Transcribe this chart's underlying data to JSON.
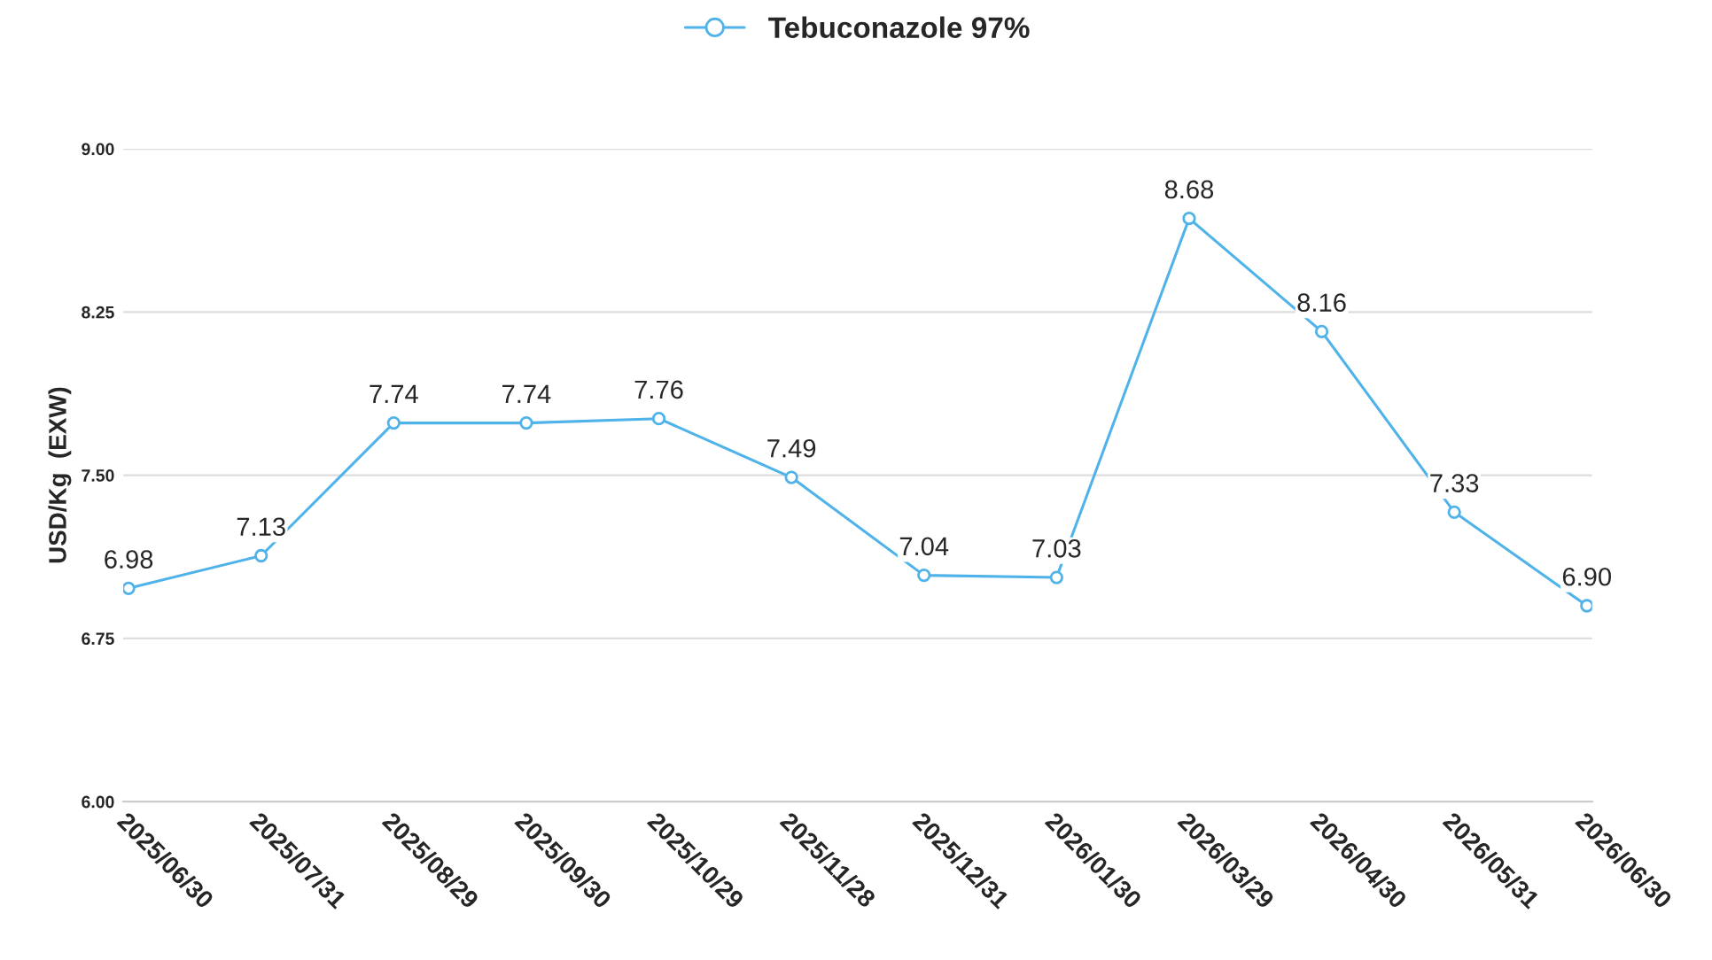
{
  "chart_data": {
    "type": "line",
    "ylabel": "USD/Kg  (EXW)",
    "categories": [
      "2025/06/30",
      "2025/07/31",
      "2025/08/29",
      "2025/09/30",
      "2025/10/29",
      "2025/11/28",
      "2025/12/31",
      "2026/01/30",
      "2026/03/29",
      "2026/04/30",
      "2026/05/31",
      "2026/06/30"
    ],
    "series": [
      {
        "name": "Tebuconazole 97%",
        "color": "#4fb3ea",
        "values": [
          6.98,
          7.13,
          7.74,
          7.74,
          7.76,
          7.49,
          7.04,
          7.03,
          8.68,
          8.16,
          7.33,
          6.9
        ],
        "value_labels": [
          "6.98",
          "7.13",
          "7.74",
          "7.74",
          "7.76",
          "7.49",
          "7.04",
          "7.03",
          "8.68",
          "8.16",
          "7.33",
          "6.90"
        ]
      }
    ],
    "ylim": [
      6,
      9
    ],
    "yticks": [
      {
        "value": 6,
        "label": "6.00"
      },
      {
        "value": 6.75,
        "label": "6.75"
      },
      {
        "value": 7.5,
        "label": "7.50"
      },
      {
        "value": 8.25,
        "label": "8.25"
      },
      {
        "value": 9,
        "label": "9.00"
      }
    ],
    "grid": "y",
    "legend": "top",
    "marker": "circle",
    "line_style": "solid"
  }
}
